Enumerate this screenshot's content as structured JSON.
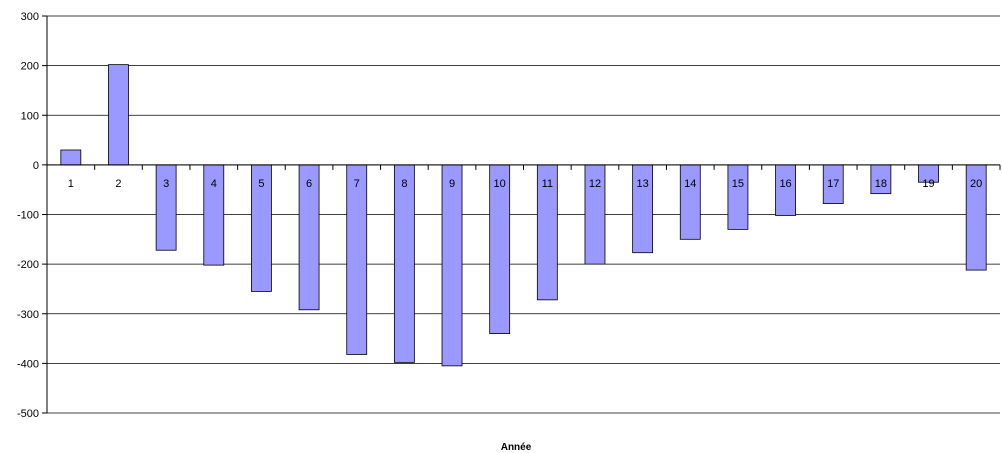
{
  "colors": {
    "bar_fill": "#9999ff",
    "bar_stroke": "#000000",
    "gridline": "#000000",
    "axis": "#000000",
    "background": "#ffffff"
  },
  "chart_data": {
    "type": "bar",
    "title": "",
    "xlabel": "Année",
    "ylabel": "",
    "categories": [
      "1",
      "2",
      "3",
      "4",
      "5",
      "6",
      "7",
      "8",
      "9",
      "10",
      "11",
      "12",
      "13",
      "14",
      "15",
      "16",
      "17",
      "18",
      "19",
      "20"
    ],
    "values": [
      30,
      202,
      -172,
      -202,
      -255,
      -292,
      -382,
      -398,
      -405,
      -340,
      -272,
      -200,
      -177,
      -150,
      -130,
      -102,
      -78,
      -58,
      -35,
      -212
    ],
    "ylim": [
      -500,
      300
    ],
    "yticks": [
      300,
      200,
      100,
      0,
      -100,
      -200,
      -300,
      -400,
      -500
    ],
    "grid": true,
    "legend": "none"
  }
}
